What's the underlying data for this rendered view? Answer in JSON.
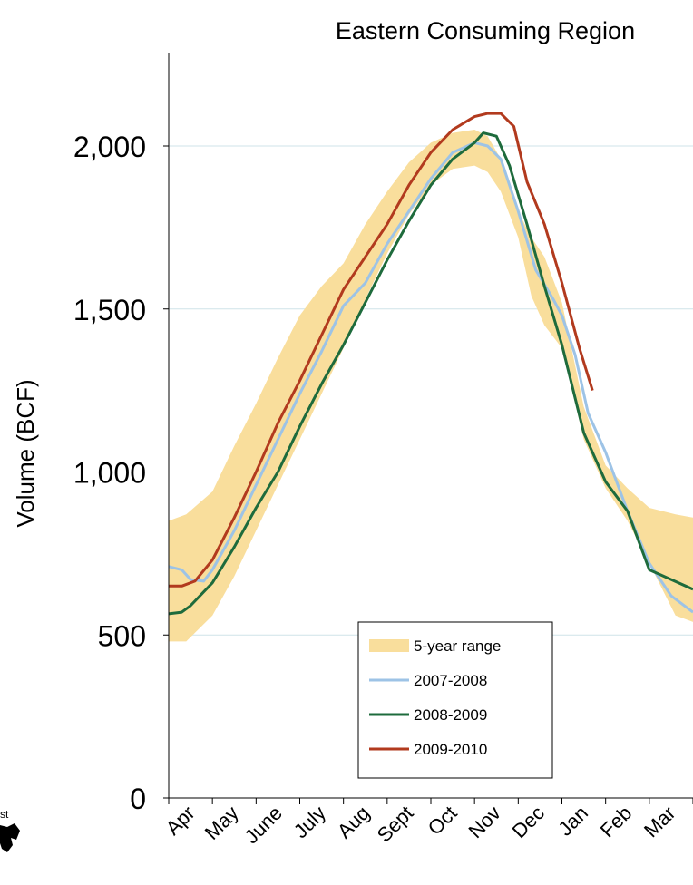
{
  "chart_data": {
    "type": "area",
    "title": "Eastern Consuming Region",
    "ylabel": "Volume (BCF)",
    "xlabel": "",
    "ylim": [
      0,
      2300
    ],
    "yticks": [
      0,
      500,
      1000,
      1500,
      2000
    ],
    "ytick_labels": [
      "0",
      "500",
      "1,000",
      "1,500",
      "2,000"
    ],
    "grid": "horizontal",
    "legend_position": "bottom-center",
    "categories": [
      "Apr",
      "May",
      "June",
      "July",
      "Aug",
      "Sept",
      "Oct",
      "Nov",
      "Dec",
      "Jan",
      "Feb",
      "Mar"
    ],
    "band": {
      "name": "5-year range",
      "color": "#F9DE9C",
      "x": [
        0,
        0.4,
        1,
        1.5,
        2,
        2.5,
        3,
        3.5,
        4,
        4.5,
        5,
        5.5,
        6,
        6.5,
        7,
        7.3,
        7.6,
        8,
        8.3,
        8.6,
        9,
        9.5,
        10,
        10.5,
        11,
        11.6,
        12
      ],
      "low": [
        480,
        480,
        560,
        680,
        820,
        960,
        1100,
        1240,
        1380,
        1530,
        1670,
        1790,
        1880,
        1930,
        1940,
        1920,
        1860,
        1720,
        1540,
        1450,
        1380,
        1100,
        950,
        850,
        720,
        560,
        540
      ],
      "high": [
        850,
        870,
        940,
        1080,
        1210,
        1350,
        1480,
        1570,
        1640,
        1760,
        1860,
        1950,
        2010,
        2040,
        2050,
        2030,
        1960,
        1800,
        1720,
        1660,
        1520,
        1200,
        1020,
        950,
        890,
        870,
        860
      ]
    },
    "series": [
      {
        "name": "2007-2008",
        "color": "#9DC3E6",
        "x": [
          0,
          0.3,
          0.5,
          0.8,
          1,
          1.5,
          2,
          2.5,
          3,
          3.5,
          4,
          4.5,
          5,
          5.5,
          6,
          6.5,
          7,
          7.3,
          7.6,
          8,
          8.4,
          8.8,
          9,
          9.3,
          9.6,
          10,
          10.5,
          11,
          11.5,
          12
        ],
        "y": [
          710,
          700,
          670,
          665,
          700,
          820,
          960,
          1100,
          1240,
          1370,
          1510,
          1580,
          1700,
          1800,
          1900,
          1980,
          2010,
          2000,
          1960,
          1800,
          1620,
          1530,
          1480,
          1360,
          1180,
          1060,
          880,
          720,
          620,
          570
        ]
      },
      {
        "name": "2008-2009",
        "color": "#1E6B3C",
        "x": [
          0,
          0.3,
          0.5,
          1,
          1.5,
          2,
          2.5,
          3,
          3.5,
          4,
          4.5,
          5,
          5.5,
          6,
          6.5,
          7,
          7.2,
          7.5,
          7.8,
          8.2,
          8.6,
          9,
          9.5,
          10,
          10.5,
          11,
          11.5,
          12
        ],
        "y": [
          565,
          570,
          590,
          660,
          770,
          890,
          1000,
          1140,
          1270,
          1390,
          1520,
          1650,
          1770,
          1880,
          1960,
          2010,
          2040,
          2030,
          1940,
          1760,
          1570,
          1390,
          1120,
          970,
          880,
          700,
          670,
          640
        ]
      },
      {
        "name": "2009-2010",
        "color": "#B23A1E",
        "x": [
          0,
          0.3,
          0.6,
          1,
          1.5,
          2,
          2.5,
          3,
          3.5,
          4,
          4.5,
          5,
          5.5,
          6,
          6.5,
          7,
          7.3,
          7.6,
          7.9,
          8.2,
          8.6,
          9,
          9.4,
          9.7
        ],
        "y": [
          650,
          650,
          665,
          730,
          860,
          1000,
          1150,
          1280,
          1420,
          1560,
          1660,
          1760,
          1880,
          1980,
          2050,
          2090,
          2100,
          2100,
          2060,
          1890,
          1760,
          1580,
          1380,
          1250
        ]
      }
    ]
  }
}
